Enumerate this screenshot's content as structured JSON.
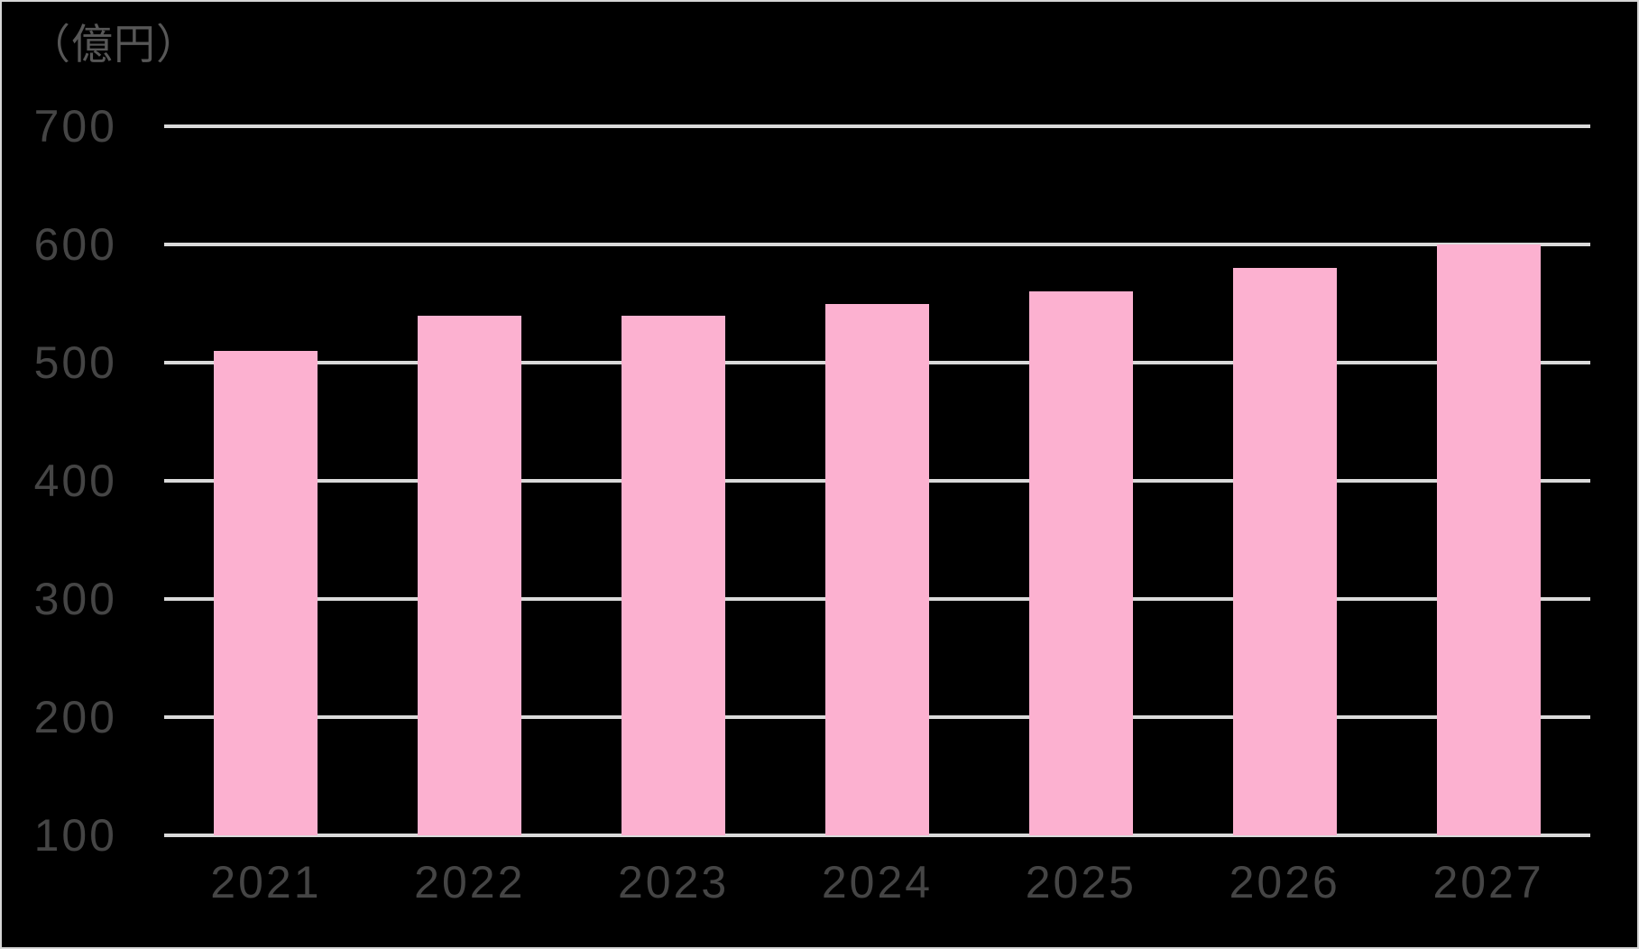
{
  "chart_data": {
    "type": "bar",
    "title": "",
    "unit_label": "（億円）",
    "xlabel": "",
    "ylabel": "億円",
    "categories": [
      "2021",
      "2022",
      "2023",
      "2024",
      "2025",
      "2026",
      "2027"
    ],
    "values": [
      510,
      540,
      540,
      550,
      560,
      580,
      600
    ],
    "ylim": [
      100,
      700
    ],
    "ytick_step": 100,
    "yticks": [
      700,
      600,
      500,
      400,
      300,
      200,
      100
    ],
    "grid": true,
    "legend": false,
    "colors": {
      "background": "#000000",
      "bar": "#FCB1D0",
      "gridline": "#DADADA",
      "tick_label": "#454545",
      "unit_label": "#575757",
      "border": "#D6D6D6"
    }
  }
}
